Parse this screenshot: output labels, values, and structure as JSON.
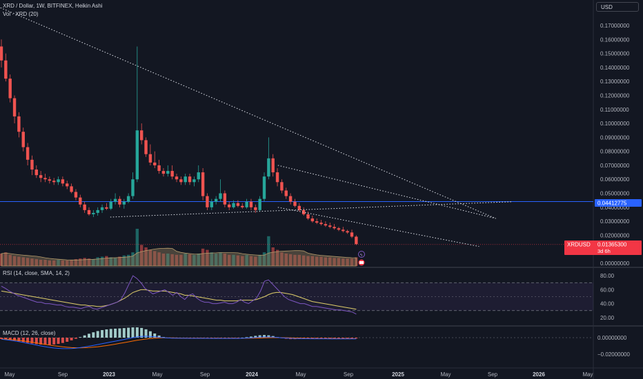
{
  "header": {
    "title": "XRD / Dollar, 1W, BITFINEX, Heikin Ashi",
    "volume_label": "Vol · XRD (20)",
    "currency_button": "USD"
  },
  "price_axis": {
    "labels": [
      "0.17000000",
      "0.16000000",
      "0.15000000",
      "0.14000000",
      "0.13000000",
      "0.12000000",
      "0.11000000",
      "0.10000000",
      "0.09000000",
      "0.08000000",
      "0.07000000",
      "0.06000000",
      "0.05000000",
      "0.04000000",
      "0.03000000",
      "0.02000000",
      "0.00000000"
    ],
    "label_values": [
      0.17,
      0.16,
      0.15,
      0.14,
      0.13,
      0.12,
      0.11,
      0.1,
      0.09,
      0.08,
      0.07,
      0.06,
      0.05,
      0.04,
      0.03,
      0.02,
      0.0
    ],
    "horizontal_level": {
      "value": 0.04412775,
      "label": "0.04412775",
      "color": "#2962ff"
    },
    "current": {
      "symbol": "XRDUSD",
      "price": "0.01365300",
      "countdown": "3d 6h",
      "color": "#f23645"
    }
  },
  "rsi": {
    "label": "RSI (14, close, SMA, 14, 2)",
    "axis_labels": [
      "80.00",
      "60.00",
      "40.00",
      "20.00"
    ],
    "axis_values": [
      80,
      60,
      40,
      20
    ],
    "band_upper": 70,
    "band_lower": 30,
    "rsi_values": [
      65,
      62,
      58,
      55,
      52,
      50,
      48,
      46,
      44,
      42,
      42,
      40,
      40,
      39,
      38,
      38,
      36,
      35,
      35,
      34,
      33,
      35,
      36,
      33,
      32,
      34,
      36,
      38,
      40,
      42,
      46,
      56,
      68,
      80,
      76,
      70,
      62,
      58,
      54,
      56,
      58,
      60,
      56,
      52,
      56,
      50,
      46,
      52,
      54,
      48,
      44,
      42,
      42,
      40,
      40,
      41,
      42,
      40,
      40,
      42,
      46,
      42,
      40,
      44,
      48,
      58,
      72,
      74,
      68,
      62,
      56,
      50,
      46,
      44,
      42,
      40,
      40,
      38,
      36,
      36,
      35,
      34,
      33,
      32,
      31,
      31,
      30,
      29,
      28,
      25
    ],
    "sma_values": [
      58,
      57,
      56,
      55,
      54,
      53,
      52,
      51,
      50,
      49,
      48,
      47,
      46,
      45,
      44,
      43,
      42,
      41,
      40,
      39,
      38,
      38,
      37,
      37,
      36,
      36,
      37,
      38,
      40,
      42,
      45,
      48,
      52,
      56,
      58,
      60,
      60,
      59,
      58,
      58,
      58,
      58,
      57,
      56,
      55,
      54,
      52,
      52,
      51,
      50,
      49,
      48,
      47,
      46,
      45,
      45,
      44,
      44,
      44,
      44,
      45,
      45,
      45,
      45,
      46,
      48,
      50,
      53,
      55,
      56,
      56,
      55,
      54,
      53,
      51,
      49,
      47,
      45,
      43,
      42,
      41,
      40,
      39,
      38,
      37,
      36,
      35,
      34,
      33,
      32
    ],
    "rsi_color": "#7e57c2",
    "sma_color": "#e0cf6a"
  },
  "macd": {
    "label": "MACD (12, 26, close)",
    "axis_labels": [
      "0.00000000",
      "−0.02000000"
    ],
    "axis_values": [
      0.0,
      -0.02
    ],
    "macd_color": "#2962ff",
    "signal_color": "#ff6d00",
    "hist_up_color": "#26a69a",
    "hist_down_color": "#ef5350"
  },
  "time_axis": {
    "labels": [
      "May",
      "Sep",
      "2023",
      "May",
      "Sep",
      "2024",
      "May",
      "Sep",
      "2025",
      "May",
      "Sep",
      "2026",
      "May"
    ]
  },
  "chart_data": {
    "type": "candlestick",
    "title": "XRD / Dollar, 1W, BITFINEX, Heikin Ashi",
    "xlabel": "",
    "ylabel": "",
    "ylim": [
      -0.005,
      0.185
    ],
    "x_ticks": [
      "May",
      "Sep",
      "2023",
      "May",
      "Sep",
      "2024",
      "May",
      "Sep",
      "2025",
      "May",
      "Sep",
      "2026",
      "May"
    ],
    "candles": [
      [
        0.155,
        0.16,
        0.14,
        0.145
      ],
      [
        0.145,
        0.15,
        0.13,
        0.132
      ],
      [
        0.132,
        0.135,
        0.115,
        0.118
      ],
      [
        0.118,
        0.12,
        0.1,
        0.105
      ],
      [
        0.105,
        0.108,
        0.09,
        0.094
      ],
      [
        0.094,
        0.097,
        0.08,
        0.083
      ],
      [
        0.083,
        0.086,
        0.07,
        0.074
      ],
      [
        0.074,
        0.077,
        0.063,
        0.067
      ],
      [
        0.067,
        0.07,
        0.061,
        0.063
      ],
      [
        0.063,
        0.066,
        0.058,
        0.061
      ],
      [
        0.061,
        0.064,
        0.058,
        0.06
      ],
      [
        0.06,
        0.062,
        0.057,
        0.059
      ],
      [
        0.059,
        0.061,
        0.056,
        0.058
      ],
      [
        0.058,
        0.062,
        0.056,
        0.06
      ],
      [
        0.06,
        0.062,
        0.055,
        0.057
      ],
      [
        0.057,
        0.059,
        0.053,
        0.055
      ],
      [
        0.055,
        0.057,
        0.05,
        0.051
      ],
      [
        0.051,
        0.053,
        0.045,
        0.047
      ],
      [
        0.047,
        0.049,
        0.04,
        0.042
      ],
      [
        0.042,
        0.044,
        0.036,
        0.038
      ],
      [
        0.038,
        0.04,
        0.034,
        0.035
      ],
      [
        0.035,
        0.038,
        0.033,
        0.036
      ],
      [
        0.036,
        0.04,
        0.034,
        0.038
      ],
      [
        0.038,
        0.042,
        0.036,
        0.04
      ],
      [
        0.04,
        0.043,
        0.038,
        0.039
      ],
      [
        0.039,
        0.046,
        0.038,
        0.044
      ],
      [
        0.044,
        0.05,
        0.042,
        0.046
      ],
      [
        0.046,
        0.048,
        0.04,
        0.042
      ],
      [
        0.042,
        0.046,
        0.039,
        0.044
      ],
      [
        0.044,
        0.05,
        0.043,
        0.048
      ],
      [
        0.048,
        0.065,
        0.046,
        0.06
      ],
      [
        0.06,
        0.155,
        0.058,
        0.095
      ],
      [
        0.095,
        0.1,
        0.085,
        0.088
      ],
      [
        0.088,
        0.09,
        0.076,
        0.078
      ],
      [
        0.078,
        0.085,
        0.07,
        0.072
      ],
      [
        0.072,
        0.08,
        0.068,
        0.07
      ],
      [
        0.07,
        0.074,
        0.064,
        0.066
      ],
      [
        0.066,
        0.068,
        0.062,
        0.064
      ],
      [
        0.064,
        0.07,
        0.062,
        0.066
      ],
      [
        0.066,
        0.07,
        0.06,
        0.062
      ],
      [
        0.062,
        0.064,
        0.058,
        0.06
      ],
      [
        0.06,
        0.062,
        0.056,
        0.058
      ],
      [
        0.058,
        0.064,
        0.056,
        0.062
      ],
      [
        0.062,
        0.064,
        0.056,
        0.058
      ],
      [
        0.058,
        0.062,
        0.055,
        0.06
      ],
      [
        0.06,
        0.07,
        0.058,
        0.065
      ],
      [
        0.065,
        0.068,
        0.045,
        0.048
      ],
      [
        0.048,
        0.05,
        0.038,
        0.04
      ],
      [
        0.04,
        0.046,
        0.038,
        0.044
      ],
      [
        0.044,
        0.048,
        0.042,
        0.046
      ],
      [
        0.046,
        0.06,
        0.044,
        0.05
      ],
      [
        0.05,
        0.052,
        0.04,
        0.042
      ],
      [
        0.042,
        0.044,
        0.038,
        0.04
      ],
      [
        0.04,
        0.045,
        0.039,
        0.043
      ],
      [
        0.043,
        0.045,
        0.04,
        0.041
      ],
      [
        0.041,
        0.043,
        0.039,
        0.04
      ],
      [
        0.04,
        0.046,
        0.039,
        0.044
      ],
      [
        0.044,
        0.046,
        0.038,
        0.04
      ],
      [
        0.04,
        0.042,
        0.036,
        0.038
      ],
      [
        0.038,
        0.048,
        0.037,
        0.046
      ],
      [
        0.046,
        0.065,
        0.044,
        0.062
      ],
      [
        0.062,
        0.09,
        0.06,
        0.075
      ],
      [
        0.075,
        0.078,
        0.062,
        0.065
      ],
      [
        0.065,
        0.068,
        0.055,
        0.058
      ],
      [
        0.058,
        0.06,
        0.05,
        0.052
      ],
      [
        0.052,
        0.054,
        0.046,
        0.048
      ],
      [
        0.048,
        0.05,
        0.042,
        0.044
      ],
      [
        0.044,
        0.046,
        0.04,
        0.041
      ],
      [
        0.041,
        0.043,
        0.037,
        0.038
      ],
      [
        0.038,
        0.04,
        0.034,
        0.035
      ],
      [
        0.035,
        0.037,
        0.031,
        0.032
      ],
      [
        0.032,
        0.034,
        0.029,
        0.03
      ],
      [
        0.03,
        0.032,
        0.028,
        0.029
      ],
      [
        0.029,
        0.031,
        0.027,
        0.028
      ],
      [
        0.028,
        0.03,
        0.026,
        0.027
      ],
      [
        0.027,
        0.029,
        0.025,
        0.026
      ],
      [
        0.026,
        0.028,
        0.024,
        0.025
      ],
      [
        0.025,
        0.026,
        0.023,
        0.024
      ],
      [
        0.024,
        0.026,
        0.022,
        0.023
      ],
      [
        0.023,
        0.024,
        0.021,
        0.022
      ],
      [
        0.022,
        0.024,
        0.018,
        0.019
      ],
      [
        0.019,
        0.02,
        0.013,
        0.01365
      ]
    ],
    "candle_format": [
      "open",
      "high",
      "low",
      "close"
    ],
    "volume": [
      20,
      22,
      18,
      16,
      15,
      14,
      13,
      12,
      11,
      10,
      10,
      9,
      9,
      10,
      9,
      9,
      10,
      11,
      12,
      13,
      12,
      11,
      14,
      15,
      16,
      14,
      13,
      15,
      17,
      18,
      22,
      60,
      34,
      30,
      26,
      24,
      22,
      20,
      20,
      19,
      18,
      18,
      20,
      19,
      18,
      20,
      28,
      26,
      22,
      20,
      22,
      20,
      18,
      18,
      17,
      16,
      18,
      16,
      15,
      18,
      22,
      48,
      30,
      26,
      22,
      20,
      19,
      18,
      18,
      17,
      16,
      16,
      15,
      15,
      14,
      14,
      13,
      13,
      12,
      12,
      12,
      14
    ],
    "trendlines": [
      {
        "from": [
          "2022-04",
          0.185
        ],
        "to": [
          "2024-10",
          0.032
        ]
      },
      {
        "from": [
          "2022-11",
          0.033
        ],
        "to": [
          "2024-11",
          0.044
        ]
      },
      {
        "from": [
          "2023-09",
          0.07
        ],
        "to": [
          "2024-10",
          0.032
        ]
      },
      {
        "from": [
          "2023-09",
          0.04
        ],
        "to": [
          "2024-09",
          0.012
        ]
      }
    ]
  }
}
